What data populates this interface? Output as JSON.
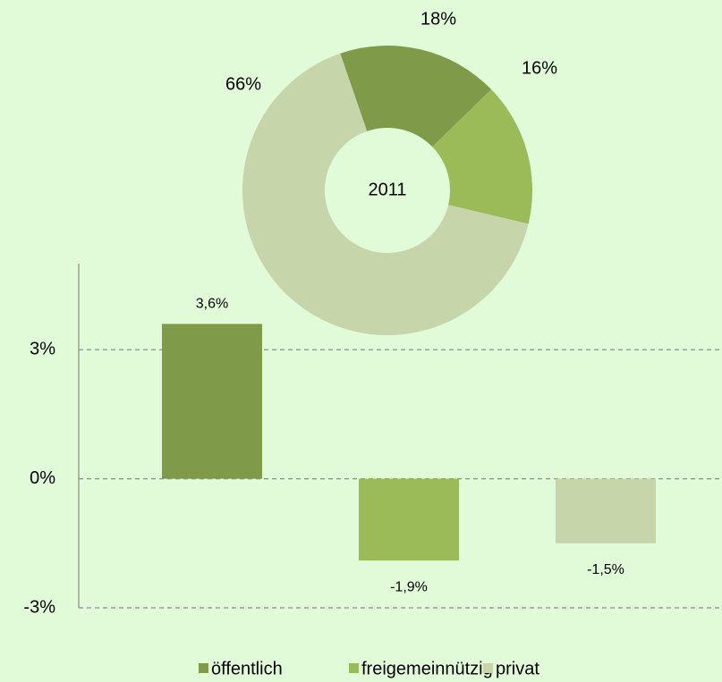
{
  "chart_data": [
    {
      "type": "pie",
      "center_label": "2011",
      "categories": [
        "öffentlich",
        "freigemeinnützig",
        "privat"
      ],
      "values": [
        18,
        16,
        66
      ],
      "value_labels": [
        "18%",
        "16%",
        "66%"
      ],
      "colors": [
        "#7f9a48",
        "#9bbb59",
        "#c6d5aa"
      ]
    },
    {
      "type": "bar",
      "categories": [
        "öffentlich",
        "freigemeinnützig",
        "privat"
      ],
      "values": [
        3.6,
        -1.9,
        -1.5
      ],
      "value_labels": [
        "3,6%",
        "-1,9%",
        "-1,5%"
      ],
      "colors": [
        "#7f9a48",
        "#9bbb59",
        "#c6d5aa"
      ],
      "ylim": [
        -3,
        5
      ],
      "yticks": [
        {
          "value": -3,
          "label": "-3%"
        },
        {
          "value": 0,
          "label": "0%"
        },
        {
          "value": 3,
          "label": "3%"
        }
      ],
      "grid": true,
      "legend": "bottom"
    }
  ]
}
